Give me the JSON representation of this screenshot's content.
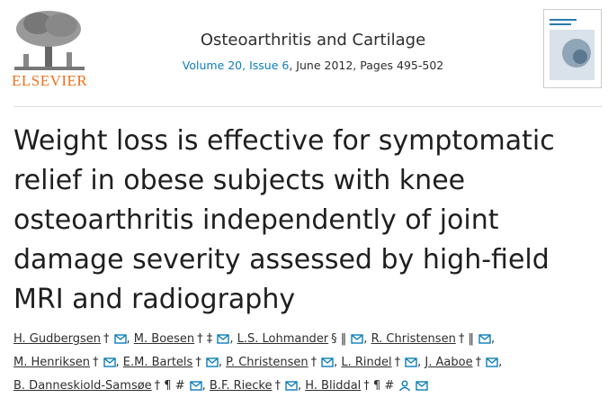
{
  "header": {
    "publisher": "ELSEVIER",
    "journal": "Osteoarthritis and Cartilage",
    "issue_link": "Volume 20, Issue 6",
    "issue_rest": ", June 2012, Pages 495-502"
  },
  "article": {
    "title": "Weight loss is effective for symptomatic relief in obese subjects with knee osteoarthritis independently of joint damage severity assessed by high-field MRI and radiography"
  },
  "authors": {
    "separator": ",",
    "list": [
      {
        "name": "H. Gudbergsen",
        "marks": "†"
      },
      {
        "name": "M. Boesen",
        "marks": "† ‡"
      },
      {
        "name": "L.S. Lohmander",
        "marks": "§ ‖"
      },
      {
        "name": "R. Christensen",
        "marks": "† ‖"
      },
      {
        "name": "M. Henriksen",
        "marks": "†"
      },
      {
        "name": "E.M. Bartels",
        "marks": "†"
      },
      {
        "name": "P. Christensen",
        "marks": "†"
      },
      {
        "name": "L. Rindel",
        "marks": "†"
      },
      {
        "name": "J. Aaboe",
        "marks": "†"
      },
      {
        "name": "B. Danneskiold-Samsøe",
        "marks": "† ¶ #"
      },
      {
        "name": "B.F. Riecke",
        "marks": "†"
      },
      {
        "name": "H. Bliddal",
        "marks": "† ¶ #",
        "profile": true
      }
    ]
  }
}
